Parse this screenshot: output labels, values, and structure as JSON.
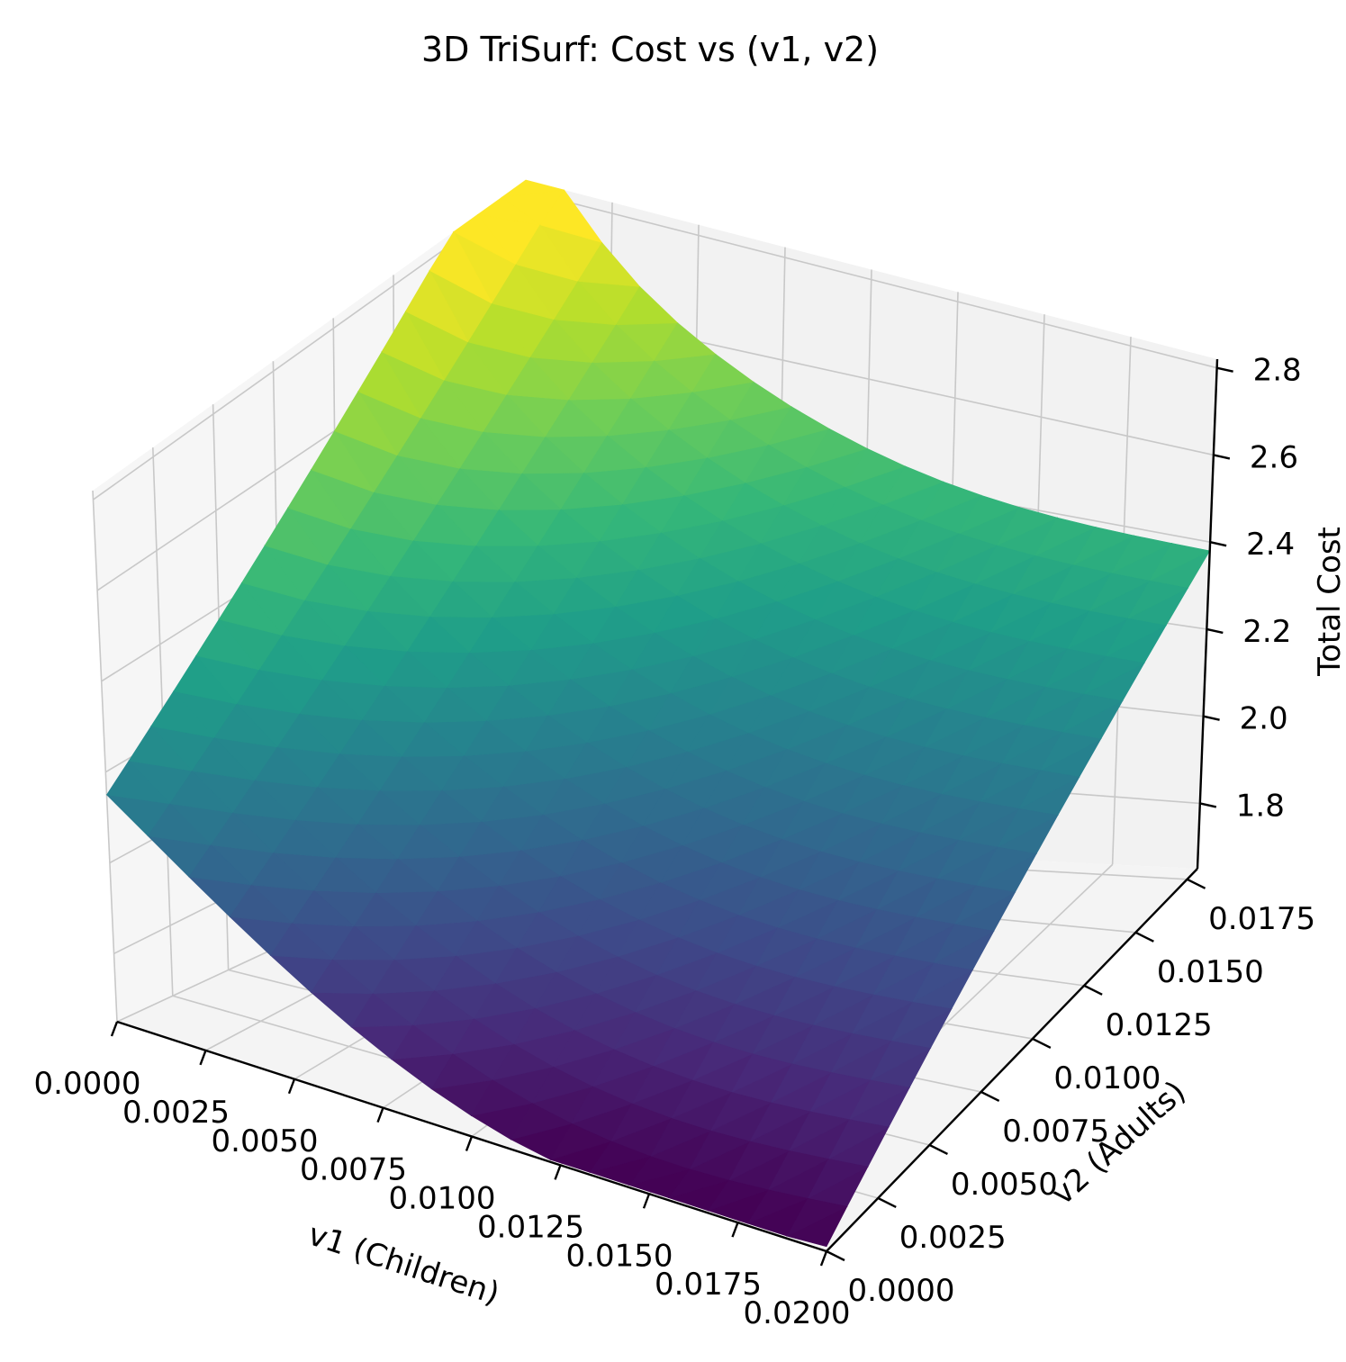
{
  "chart_data": {
    "type": "surface",
    "title": "3D TriSurf: Cost vs (v1, v2)",
    "xlabel": "v1 (Children)",
    "ylabel": "v2 (Adults)",
    "zlabel": "Total Cost",
    "xlim": [
      0.0,
      0.02
    ],
    "ylim": [
      0.0,
      0.018
    ],
    "zlim": [
      1.65,
      2.82
    ],
    "x_ticks": [
      "0.0000",
      "0.0025",
      "0.0050",
      "0.0075",
      "0.0100",
      "0.0125",
      "0.0150",
      "0.0175",
      "0.0200"
    ],
    "y_ticks": [
      "0.0000",
      "0.0025",
      "0.0050",
      "0.0075",
      "0.0100",
      "0.0125",
      "0.0150",
      "0.0175"
    ],
    "z_ticks": [
      "1.8",
      "2.0",
      "2.2",
      "2.4",
      "2.6",
      "2.8"
    ],
    "grid": true,
    "colormap": "viridis",
    "corner_values": [
      {
        "v1": 0.0,
        "v2": 0.0,
        "cost": 2.15
      },
      {
        "v1": 0.02,
        "v2": 0.0,
        "cost": 1.66
      },
      {
        "v1": 0.0,
        "v2": 0.018,
        "cost": 2.78
      },
      {
        "v1": 0.02,
        "v2": 0.018,
        "cost": 2.38
      }
    ]
  }
}
